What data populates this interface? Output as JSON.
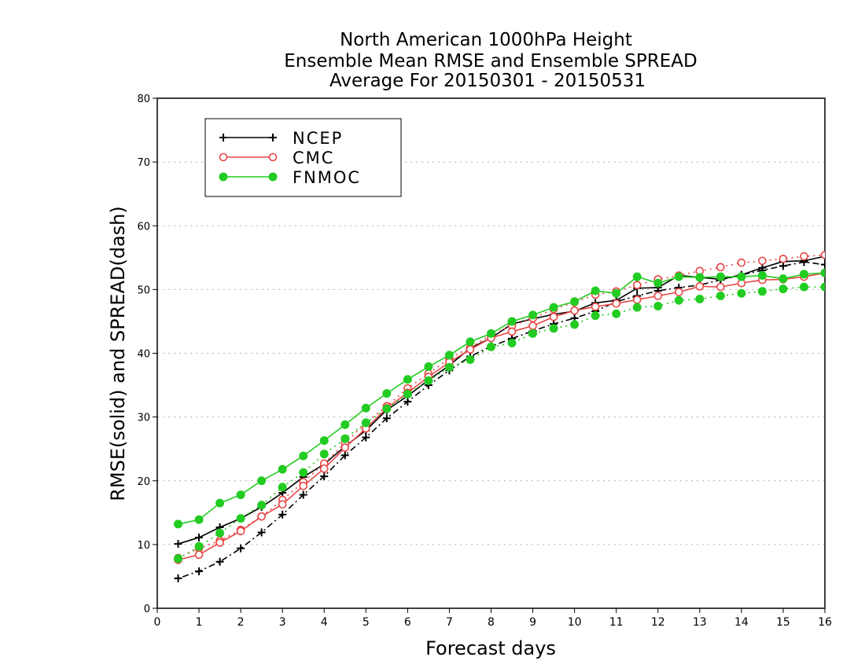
{
  "chart_data": {
    "type": "line",
    "title_lines": [
      "North American 1000hPa Height",
      "Ensemble Mean RMSE and Ensemble SPREAD",
      "Average For 20150301 - 20150531"
    ],
    "xlabel": "Forecast days",
    "ylabel": "RMSE(solid) and SPREAD(dash)",
    "xlim": [
      0,
      16
    ],
    "ylim": [
      0,
      80
    ],
    "xticks": [
      "0",
      "1",
      "2",
      "3",
      "4",
      "5",
      "6",
      "7",
      "8",
      "9",
      "10",
      "11",
      "12",
      "13",
      "14",
      "15",
      "16"
    ],
    "yticks": [
      "0",
      "10",
      "20",
      "30",
      "40",
      "50",
      "60",
      "70",
      "80"
    ],
    "grid": true,
    "legend_position": "top-left",
    "x": [
      0.5,
      1,
      1.5,
      2,
      2.5,
      3,
      3.5,
      4,
      4.5,
      5,
      5.5,
      6,
      6.5,
      7,
      7.5,
      8,
      8.5,
      9,
      9.5,
      10,
      10.5,
      11,
      11.5,
      12,
      12.5,
      13,
      13.5,
      14,
      14.5,
      15,
      15.5,
      16
    ],
    "series": [
      {
        "name": "NCEP",
        "color": "#000000",
        "marker": "plus",
        "rmse": [
          10.1,
          11.1,
          12.7,
          14.1,
          15.9,
          18.1,
          20.6,
          22.6,
          25.4,
          27.9,
          31.1,
          33.3,
          35.8,
          38.1,
          40.8,
          42.4,
          44.6,
          45.4,
          46.1,
          46.6,
          47.9,
          48.3,
          50.2,
          50.3,
          52.2,
          51.9,
          51.6,
          52.3,
          53.4,
          54.4,
          54.5,
          55.2
        ],
        "spread": [
          4.7,
          5.8,
          7.3,
          9.4,
          11.9,
          14.7,
          17.8,
          20.7,
          24.0,
          26.8,
          29.8,
          32.4,
          35.0,
          37.3,
          39.5,
          41.1,
          42.3,
          43.5,
          44.6,
          45.5,
          46.6,
          48.1,
          49.0,
          49.8,
          50.3,
          50.7,
          51.5,
          52.3,
          53.0,
          53.7,
          54.3,
          53.9
        ]
      },
      {
        "name": "CMC",
        "color": "#e84545",
        "marker": "open-circle",
        "rmse": [
          7.6,
          8.4,
          10.3,
          12.1,
          14.4,
          16.3,
          19.2,
          21.9,
          25.2,
          28.2,
          31.4,
          33.8,
          36.3,
          38.6,
          40.6,
          42.4,
          43.4,
          44.3,
          45.7,
          46.7,
          47.3,
          47.8,
          48.4,
          49.0,
          49.6,
          50.5,
          50.4,
          51.0,
          51.5,
          51.6,
          52.0,
          52.6
        ],
        "spread": [
          7.9,
          9.4,
          10.6,
          12.3,
          14.4,
          17.0,
          19.8,
          22.7,
          25.9,
          29.1,
          31.7,
          34.5,
          36.8,
          39.2,
          40.9,
          42.9,
          44.3,
          45.5,
          46.9,
          48.0,
          49.2,
          49.7,
          50.7,
          51.6,
          52.2,
          52.9,
          53.5,
          54.2,
          54.5,
          54.8,
          55.2,
          55.4
        ]
      },
      {
        "name": "FNMOC",
        "color": "#22cc22",
        "marker": "filled-circle",
        "rmse": [
          13.2,
          13.9,
          16.5,
          17.8,
          20.0,
          21.8,
          23.9,
          26.3,
          28.8,
          31.4,
          33.7,
          35.9,
          37.9,
          39.7,
          41.8,
          43.1,
          45.0,
          46.0,
          47.2,
          48.1,
          49.8,
          49.4,
          52.0,
          51.0,
          52.0,
          51.9,
          52.0,
          52.0,
          52.2,
          51.7,
          52.4,
          52.6
        ],
        "spread": [
          7.8,
          9.7,
          11.8,
          14.1,
          16.2,
          19.0,
          21.3,
          24.2,
          26.6,
          29.1,
          31.3,
          33.6,
          35.7,
          37.8,
          39.0,
          41.0,
          41.6,
          43.1,
          43.9,
          44.5,
          45.9,
          46.2,
          47.2,
          47.4,
          48.3,
          48.5,
          49.0,
          49.4,
          49.7,
          50.1,
          50.4,
          50.4
        ]
      }
    ]
  }
}
